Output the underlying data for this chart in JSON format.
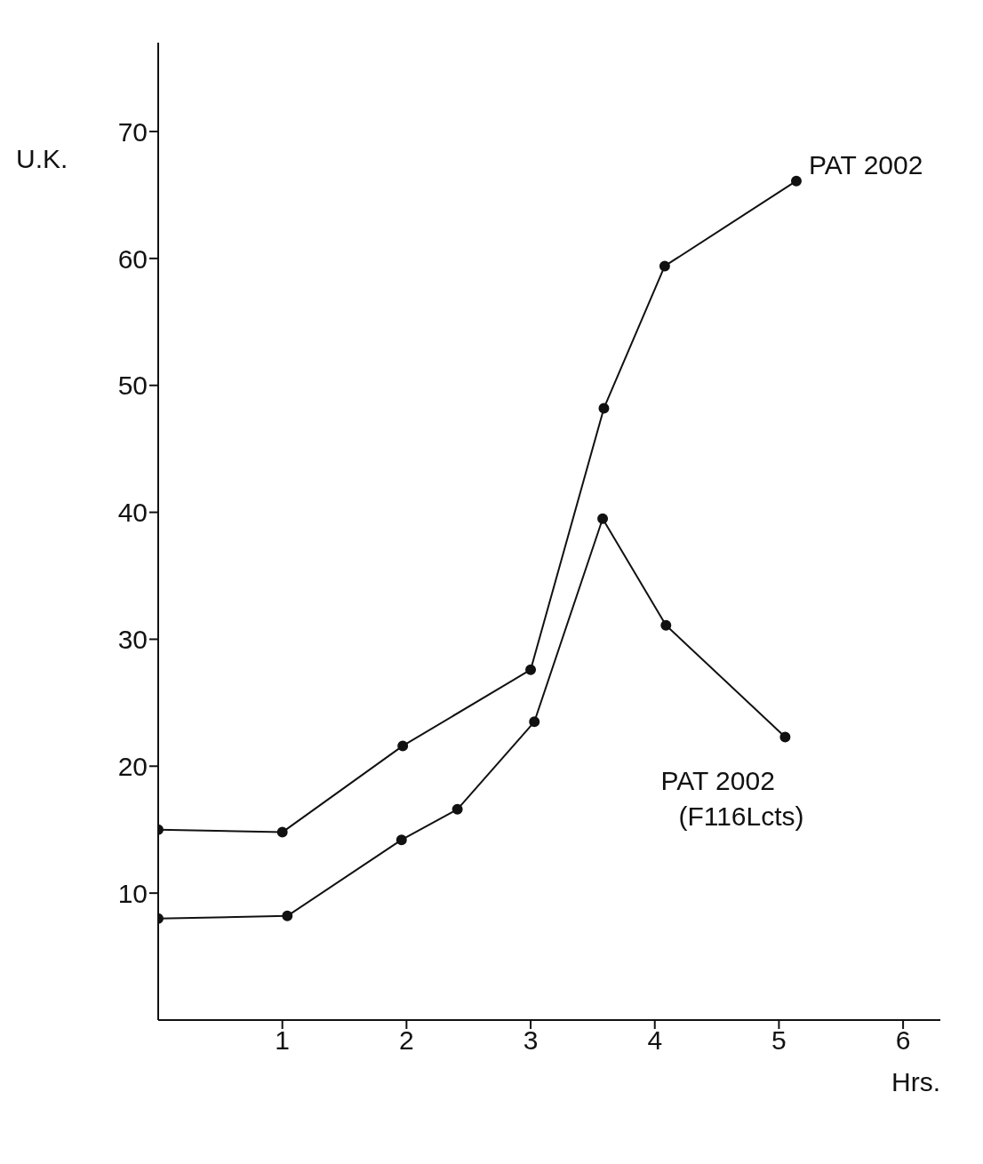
{
  "chart_data": {
    "type": "line",
    "xlabel": "Hrs.",
    "ylabel": "U.K.",
    "xlim": [
      0,
      6.3
    ],
    "ylim": [
      0,
      77
    ],
    "xticks": [
      1,
      2,
      3,
      4,
      5,
      6
    ],
    "yticks": [
      10,
      20,
      30,
      40,
      50,
      60,
      70
    ],
    "grid": false,
    "legend": false,
    "marker": "circle",
    "line_style": "solid",
    "series": [
      {
        "name": "PAT 2002",
        "color": "#111111",
        "x": [
          0,
          1.0,
          1.97,
          3.0,
          3.59,
          4.08,
          5.14
        ],
        "values": [
          15.0,
          14.8,
          21.6,
          27.6,
          48.2,
          59.4,
          66.1
        ]
      },
      {
        "name": "PAT 2002 (F116Lcts)",
        "color": "#111111",
        "x": [
          0,
          1.04,
          1.96,
          2.41,
          3.03,
          3.58,
          4.09,
          5.05
        ],
        "values": [
          8.0,
          8.2,
          14.2,
          16.6,
          23.5,
          39.5,
          31.1,
          22.3
        ]
      }
    ]
  }
}
